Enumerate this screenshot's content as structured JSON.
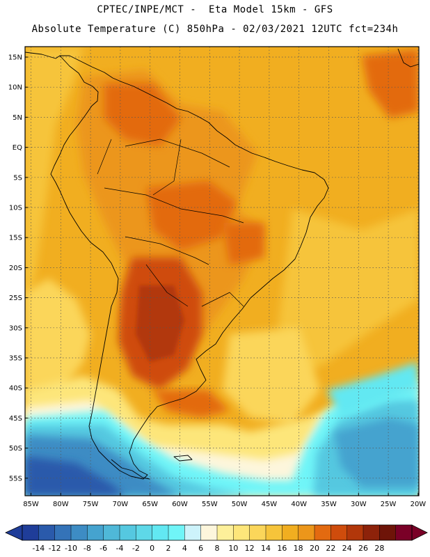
{
  "header": {
    "title_line1": "CPTEC/INPE/MCT -  Eta Model 15km - GFS",
    "title_line2": "Absolute Temperature (C) 850hPa - 02/03/2021 12UTC fct=234h"
  },
  "map": {
    "lat_labels": [
      "15N",
      "10N",
      "5N",
      "EQ",
      "5S",
      "10S",
      "15S",
      "20S",
      "25S",
      "30S",
      "35S",
      "40S",
      "45S",
      "50S",
      "55S"
    ],
    "lon_labels": [
      "85W",
      "80W",
      "75W",
      "70W",
      "65W",
      "60W",
      "55W",
      "50W",
      "45W",
      "40W",
      "35W",
      "30W",
      "25W",
      "20W"
    ],
    "gridline_color": "#555555",
    "coastline_color": "#000000"
  },
  "colorbar": {
    "labels": [
      "-14",
      "-12",
      "-10",
      "-8",
      "-6",
      "-4",
      "-2",
      "0",
      "2",
      "4",
      "6",
      "8",
      "10",
      "12",
      "14",
      "16",
      "18",
      "20",
      "22",
      "24",
      "26",
      "28"
    ],
    "colors": [
      "#1f3d99",
      "#2a5aab",
      "#3473b8",
      "#3d8cc4",
      "#45a3cf",
      "#4fb8d8",
      "#55c8e0",
      "#5ed8e8",
      "#62e8f2",
      "#70f5f8",
      "#cdf3fb",
      "#fdf6dc",
      "#fdf09a",
      "#fde67a",
      "#fbd65a",
      "#f6c43a",
      "#f1ae20",
      "#ec961a",
      "#e36a10",
      "#cf4c0c",
      "#b2370a",
      "#8d220a",
      "#6e1408",
      "#7a0027"
    ],
    "end_left_color": "#1f3d99",
    "end_right_color": "#7a0027"
  }
}
